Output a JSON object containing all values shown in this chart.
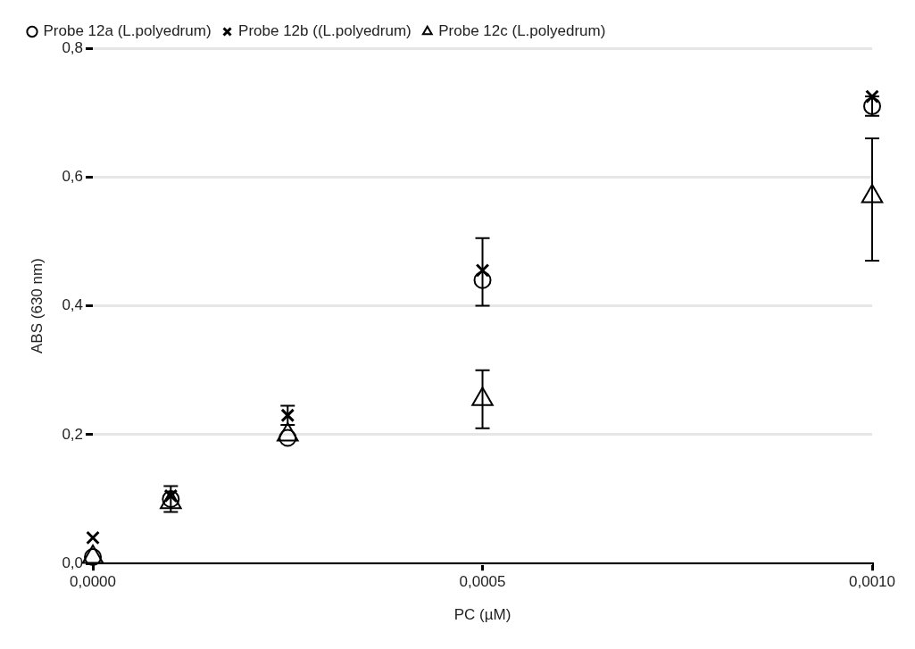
{
  "chart_data": {
    "type": "scatter",
    "xlabel": "PC (µM)",
    "ylabel": "ABS (630 nm)",
    "x": [
      0,
      0.0001,
      0.00025,
      0.0005,
      0.001
    ],
    "series": [
      {
        "name": "Probe 12a (L.polyedrum)",
        "color": "#000000",
        "marker": "circle",
        "values": [
          0.01,
          0.1,
          0.195,
          0.44,
          0.71
        ],
        "errors": [
          null,
          0.02,
          null,
          [
            0.4,
            0.505
          ],
          0.015
        ]
      },
      {
        "name": "Probe 12b ((L.polyedrum)",
        "color": "#000000",
        "marker": "cross",
        "values": [
          0.04,
          0.105,
          0.23,
          0.455,
          0.725
        ],
        "errors": [
          null,
          null,
          0.015,
          null,
          null
        ]
      },
      {
        "name": "Probe 12c (L.polyedrum)",
        "color": "#000000",
        "marker": "triangle",
        "values": [
          0.01,
          0.095,
          0.2,
          0.255,
          0.57
        ],
        "errors": [
          null,
          null,
          null,
          [
            0.21,
            0.3
          ],
          [
            0.47,
            0.66
          ]
        ]
      }
    ],
    "xlim": [
      0,
      0.001
    ],
    "xticks": [
      {
        "value": 0,
        "label": "0,0000"
      },
      {
        "value": 0.0005,
        "label": "0,0005"
      },
      {
        "value": 0.001,
        "label": "0,0010"
      }
    ],
    "ylim": [
      0,
      0.8
    ],
    "yticks": [
      {
        "value": 0,
        "label": "0,0"
      },
      {
        "value": 0.2,
        "label": "0,2"
      },
      {
        "value": 0.4,
        "label": "0,4"
      },
      {
        "value": 0.6,
        "label": "0,6"
      },
      {
        "value": 0.8,
        "label": "0,8"
      }
    ],
    "grid": "y",
    "legend": "top left"
  }
}
